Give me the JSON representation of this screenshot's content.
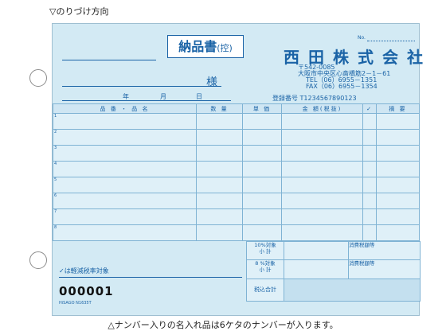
{
  "captions": {
    "top": "▽のりづけ方向",
    "bottom": "△ナンバー入りの名入れ品は6ケタのナンバーが入ります。"
  },
  "form": {
    "title": "納品書",
    "title_suffix": "(控)",
    "sama": "様",
    "date_year": "年",
    "date_month": "月",
    "date_day": "日",
    "no_label": "No.",
    "company": "西田株式会社",
    "address_lines": [
      "〒542-0085",
      "大阪市中央区心斎橋筋2－1－61",
      "TEL（06）6955－1351",
      "FAX（06）6955－1354"
    ],
    "registration": "登録番号 T1234567890123",
    "columns": {
      "item": "品 番 ・ 品 名",
      "qty": "数 量",
      "unit_price": "単 価",
      "amount": "金 額(税抜)",
      "check": "✓",
      "note": "摘 要"
    },
    "row_numbers": [
      "1",
      "2",
      "3",
      "4",
      "5",
      "6",
      "7",
      "8"
    ],
    "tax": {
      "ten_label": "10%対象",
      "ten_subtotal": "小 計",
      "eight_label": "8 %対象",
      "eight_subtotal": "小 計",
      "tax_amount_1": "消費税額等",
      "tax_amount_2": "消費税額等",
      "total": "税込合計"
    },
    "reduced_note": "✓は軽減税率対象",
    "serial": "000001",
    "brand": "HiSAGO N1635T"
  }
}
